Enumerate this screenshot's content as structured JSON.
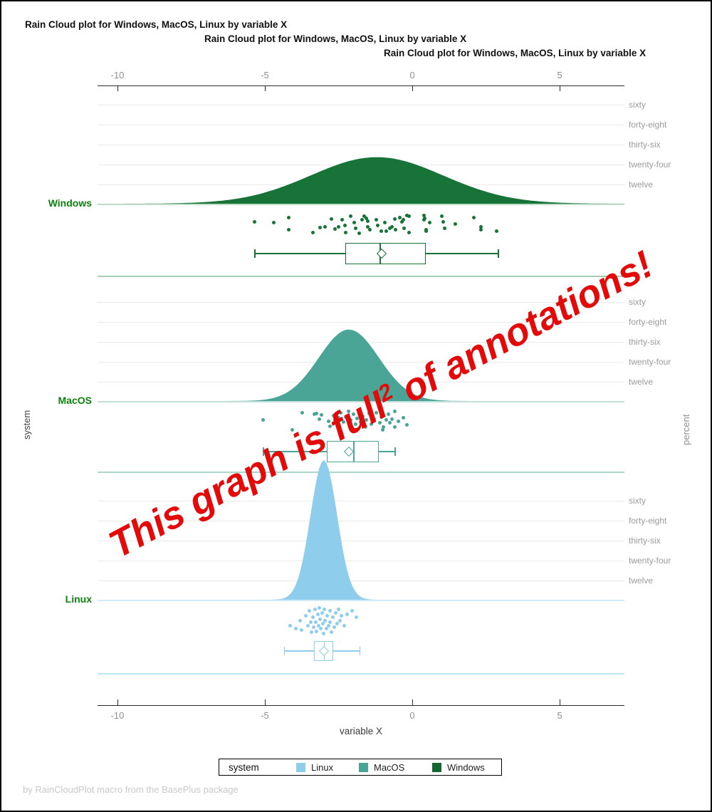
{
  "titles": [
    "Rain Cloud plot for Windows, MacOS, Linux by variable X",
    "Rain Cloud plot for Windows, MacOS, Linux by variable X",
    "Rain Cloud plot for Windows, MacOS, Linux by variable X"
  ],
  "axis": {
    "xlabel": "variable X",
    "ticks": [
      "-10",
      "-5",
      "0",
      "5"
    ],
    "tick_values": [
      -10,
      -5,
      0,
      5
    ]
  },
  "ylabels": {
    "left": "system",
    "right": "percent",
    "right_ticks_top_to_bottom": [
      "sixty",
      "forty-eight",
      "thirty-six",
      "twenty-four",
      "twelve"
    ]
  },
  "annotation": {
    "part1": "This graph is full",
    "sup": "2",
    "part2": " of annotations!",
    "color": "#e30a0a"
  },
  "footnote": "by RainCloudPlot macro from the BasePlus package",
  "legend": {
    "title": "system",
    "items": [
      {
        "label": "Linux",
        "color": "#8ecdec"
      },
      {
        "label": "MacOS",
        "color": "#4aa596"
      },
      {
        "label": "Windows",
        "color": "#14682f"
      }
    ]
  },
  "chart_data": {
    "type": "area",
    "subtype": "raincloud (half-violin density + jittered scatter + boxplot per group)",
    "x_axis": {
      "label": "variable X",
      "ticks": [
        -10,
        -5,
        0,
        5
      ],
      "range": [
        -10.7,
        7.2
      ],
      "grid": false
    },
    "y2_axis": {
      "label": "percent",
      "ticks_bottom_to_top": [
        "twelve",
        "twenty-four",
        "thirty-six",
        "forty-eight",
        "sixty"
      ],
      "tick_values": [
        12,
        24,
        36,
        48,
        60
      ]
    },
    "groups": [
      {
        "name": "Windows",
        "color": "#177338",
        "density": {
          "mean": -1.2,
          "sd": 2.25,
          "peak_percent": 28
        },
        "box": {
          "low": -5.36,
          "q1": -2.27,
          "median": -1.11,
          "q3": 0.46,
          "high": 2.9,
          "mean": -1.04
        },
        "points": [
          [
            -5.36,
            0.43
          ],
          [
            -4.71,
            0.46
          ],
          [
            -4.18,
            0.26
          ],
          [
            -4.2,
            0.74
          ],
          [
            -3.38,
            0.86
          ],
          [
            -3.14,
            0.66
          ],
          [
            -2.95,
            0.63
          ],
          [
            -2.75,
            0.31
          ],
          [
            -2.63,
            0.71
          ],
          [
            -2.51,
            0.63
          ],
          [
            -2.37,
            0.34
          ],
          [
            -2.29,
            0.57
          ],
          [
            -2.27,
            0.86
          ],
          [
            -2.08,
            0.2
          ],
          [
            -1.96,
            0.46
          ],
          [
            -1.93,
            0.69
          ],
          [
            -1.79,
            0.91
          ],
          [
            -1.71,
            0.34
          ],
          [
            -1.62,
            0.2
          ],
          [
            -1.57,
            0.29
          ],
          [
            -1.52,
            0.4
          ],
          [
            -1.5,
            0.63
          ],
          [
            -1.43,
            0.74
          ],
          [
            -1.21,
            0.34
          ],
          [
            -1.16,
            0.57
          ],
          [
            -1.06,
            0.8
          ],
          [
            -0.92,
            0.46
          ],
          [
            -0.87,
            0.8
          ],
          [
            -0.75,
            0.69
          ],
          [
            -0.68,
            0.63
          ],
          [
            -0.6,
            0.31
          ],
          [
            -0.56,
            0.74
          ],
          [
            -0.43,
            0.26
          ],
          [
            -0.34,
            0.43
          ],
          [
            -0.31,
            0.34
          ],
          [
            -0.27,
            0.69
          ],
          [
            -0.17,
            0.17
          ],
          [
            -0.12,
            0.2
          ],
          [
            -0.1,
            0.86
          ],
          [
            0.39,
            0.17
          ],
          [
            0.41,
            0.34
          ],
          [
            0.43,
            0.29
          ],
          [
            0.46,
            0.74
          ],
          [
            0.48,
            0.8
          ],
          [
            0.58,
            0.46
          ],
          [
            1.01,
            0.2
          ],
          [
            1.06,
            0.43
          ],
          [
            1.11,
            0.69
          ],
          [
            1.47,
            0.51
          ],
          [
            2.08,
            0.26
          ],
          [
            2.32,
            0.63
          ],
          [
            2.34,
            0.74
          ],
          [
            2.87,
            0.8
          ]
        ]
      },
      {
        "name": "MacOS",
        "color": "#4aa596",
        "density": {
          "mean": -2.15,
          "sd": 1.02,
          "peak_percent": 43
        },
        "box": {
          "low": -5.07,
          "q1": -2.9,
          "median": -2.0,
          "q3": -1.14,
          "high": -0.6,
          "mean": -2.15
        },
        "points": [
          [
            -5.07,
            0.4
          ],
          [
            -4.06,
            0.71
          ],
          [
            -3.72,
            0.18
          ],
          [
            -3.33,
            0.22
          ],
          [
            -3.24,
            0.2
          ],
          [
            -3.16,
            0.38
          ],
          [
            -3.07,
            0.24
          ],
          [
            -2.85,
            0.44
          ],
          [
            -2.78,
            0.6
          ],
          [
            -2.68,
            0.27
          ],
          [
            -2.63,
            0.4
          ],
          [
            -2.54,
            0.53
          ],
          [
            -2.51,
            0.33
          ],
          [
            -2.42,
            0.18
          ],
          [
            -2.34,
            0.47
          ],
          [
            -2.27,
            0.31
          ],
          [
            -2.17,
            0.13
          ],
          [
            -2.1,
            0.4
          ],
          [
            -2.05,
            0.67
          ],
          [
            -2.0,
            0.22
          ],
          [
            -1.93,
            0.53
          ],
          [
            -1.88,
            0.36
          ],
          [
            -1.79,
            0.09
          ],
          [
            -1.74,
            0.47
          ],
          [
            -1.67,
            0.29
          ],
          [
            -1.59,
            0.62
          ],
          [
            -1.55,
            0.4
          ],
          [
            -1.45,
            0.2
          ],
          [
            -1.38,
            0.53
          ],
          [
            -1.3,
            0.38
          ],
          [
            -1.21,
            0.18
          ],
          [
            -1.11,
            0.49
          ],
          [
            -1.06,
            0.31
          ],
          [
            -1.01,
            0.71
          ],
          [
            -0.97,
            0.62
          ],
          [
            -0.89,
            0.4
          ],
          [
            -0.82,
            0.22
          ],
          [
            -0.75,
            0.49
          ],
          [
            -0.68,
            0.38
          ],
          [
            -0.6,
            0.13
          ],
          [
            -0.58,
            0.62
          ],
          [
            -0.48,
            0.44
          ],
          [
            -0.29,
            0.33
          ],
          [
            -0.17,
            0.56
          ]
        ]
      },
      {
        "name": "Linux",
        "color": "#8ecdec",
        "density": {
          "mean": -3.0,
          "sd": 0.45,
          "peak_percent": 84
        },
        "box": {
          "low": -4.35,
          "q1": -3.33,
          "median": -3.0,
          "q3": -2.68,
          "high": -1.79,
          "mean": -3.0
        },
        "points": [
          [
            -4.15,
            0.6
          ],
          [
            -3.95,
            0.7
          ],
          [
            -3.8,
            0.45
          ],
          [
            -3.75,
            0.75
          ],
          [
            -3.6,
            0.3
          ],
          [
            -3.55,
            0.6
          ],
          [
            -3.5,
            0.15
          ],
          [
            -3.45,
            0.5
          ],
          [
            -3.42,
            0.8
          ],
          [
            -3.38,
            0.35
          ],
          [
            -3.35,
            0.65
          ],
          [
            -3.3,
            0.1
          ],
          [
            -3.28,
            0.5
          ],
          [
            -3.25,
            0.78
          ],
          [
            -3.2,
            0.25
          ],
          [
            -3.18,
            0.6
          ],
          [
            -3.15,
            0.05
          ],
          [
            -3.12,
            0.4
          ],
          [
            -3.1,
            0.7
          ],
          [
            -3.05,
            0.2
          ],
          [
            -3.02,
            0.55
          ],
          [
            -3.0,
            0.85
          ],
          [
            -2.98,
            0.1
          ],
          [
            -2.95,
            0.45
          ],
          [
            -2.92,
            0.7
          ],
          [
            -2.88,
            0.3
          ],
          [
            -2.85,
            0.6
          ],
          [
            -2.8,
            0.15
          ],
          [
            -2.78,
            0.5
          ],
          [
            -2.75,
            0.8
          ],
          [
            -2.7,
            0.35
          ],
          [
            -2.65,
            0.65
          ],
          [
            -2.6,
            0.2
          ],
          [
            -2.55,
            0.55
          ],
          [
            -2.5,
            0.1
          ],
          [
            -2.45,
            0.45
          ],
          [
            -2.4,
            0.3
          ],
          [
            -2.3,
            0.6
          ],
          [
            -2.2,
            0.25
          ],
          [
            -2.05,
            0.15
          ],
          [
            -1.9,
            0.35
          ]
        ]
      }
    ]
  }
}
